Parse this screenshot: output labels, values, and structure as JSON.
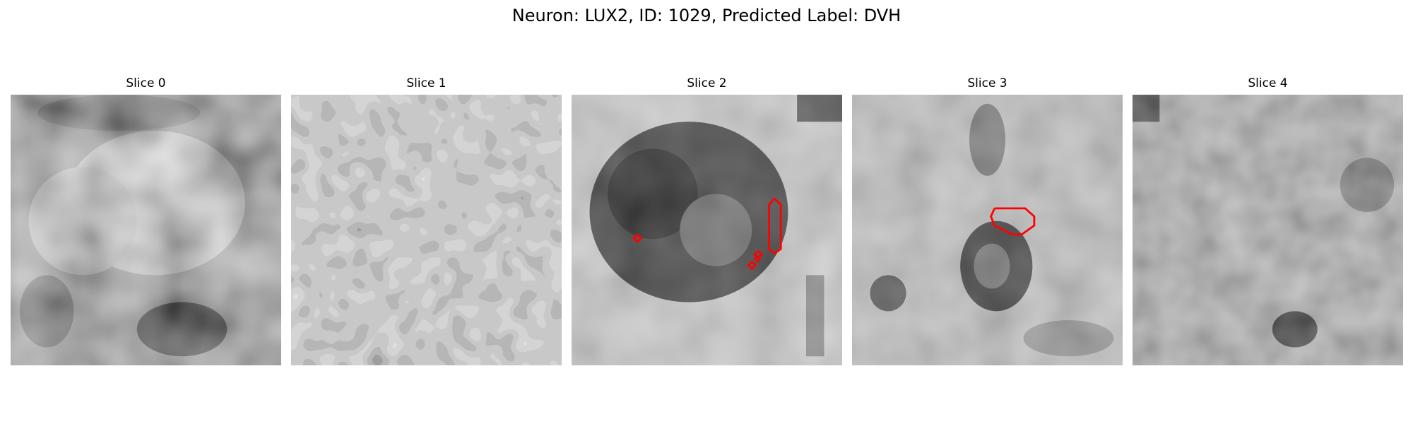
{
  "figure": {
    "title": "Neuron: LUX2, ID: 1029, Predicted Label: DVH"
  },
  "panels": [
    {
      "title": "Slice 0"
    },
    {
      "title": "Slice 1"
    },
    {
      "title": "Slice 2"
    },
    {
      "title": "Slice 3"
    },
    {
      "title": "Slice 4"
    }
  ],
  "colors": {
    "contour": "#ff0000",
    "background": "#ffffff",
    "colormap": "gray"
  }
}
